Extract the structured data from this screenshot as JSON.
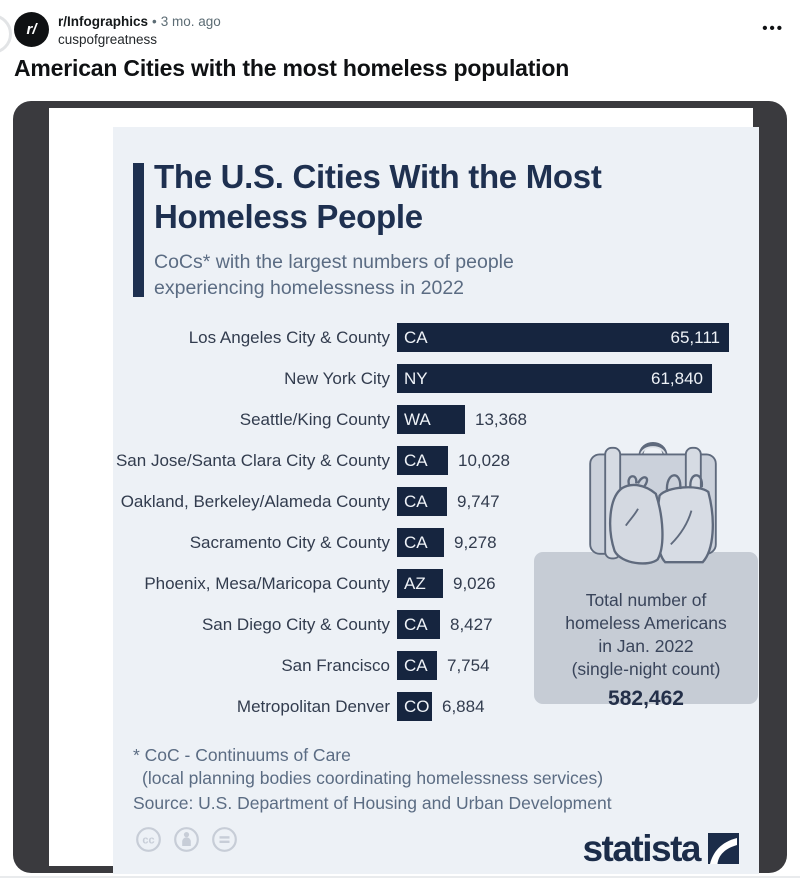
{
  "post": {
    "avatar_label": "r/",
    "subreddit": "r/Infographics",
    "separator": "•",
    "timestamp": "3 mo. ago",
    "author": "cuspofgreatness",
    "menu_label": "•••",
    "title": "American Cities with the most homeless population"
  },
  "chart_data": {
    "type": "bar",
    "orientation": "horizontal",
    "title": "The U.S. Cities With the Most Homeless People",
    "subtitle": "CoCs* with the largest numbers of people experiencing homelessness in 2022",
    "bar_color": "#16253f",
    "background_color": "#edf1f6",
    "xlim": [
      0,
      65111
    ],
    "grid": false,
    "rows": [
      {
        "city": "Los Angeles City & County",
        "state": "CA",
        "value": 65111,
        "value_label": "65,111"
      },
      {
        "city": "New York City",
        "state": "NY",
        "value": 61840,
        "value_label": "61,840"
      },
      {
        "city": "Seattle/King County",
        "state": "WA",
        "value": 13368,
        "value_label": "13,368"
      },
      {
        "city": "San Jose/Santa Clara City & County",
        "state": "CA",
        "value": 10028,
        "value_label": "10,028"
      },
      {
        "city": "Oakland, Berkeley/Alameda County",
        "state": "CA",
        "value": 9747,
        "value_label": "9,747"
      },
      {
        "city": "Sacramento City & County",
        "state": "CA",
        "value": 9278,
        "value_label": "9,278"
      },
      {
        "city": "Phoenix, Mesa/Maricopa County",
        "state": "AZ",
        "value": 9026,
        "value_label": "9,026"
      },
      {
        "city": "San Diego City & County",
        "state": "CA",
        "value": 8427,
        "value_label": "8,427"
      },
      {
        "city": "San Francisco",
        "state": "CA",
        "value": 7754,
        "value_label": "7,754"
      },
      {
        "city": "Metropolitan Denver",
        "state": "CO",
        "value": 6884,
        "value_label": "6,884"
      }
    ],
    "annotation": {
      "lines": [
        "Total number of",
        "homeless Americans",
        "in Jan. 2022",
        "(single-night count)"
      ],
      "value": "582,462"
    },
    "footnote_line1": "* CoC - Continuums of Care",
    "footnote_line2": "(local planning bodies coordinating homelessness services)",
    "source": "Source: U.S. Department of Housing and Urban Development",
    "brand": "statista"
  }
}
